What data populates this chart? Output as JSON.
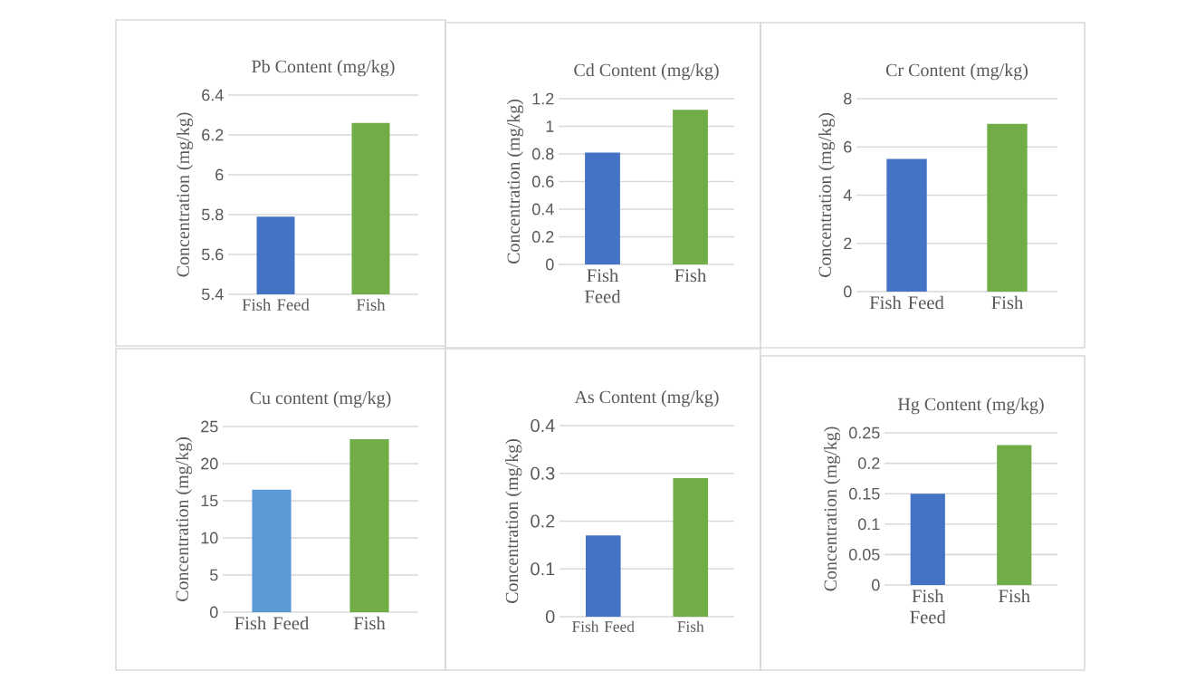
{
  "chart_data": [
    {
      "type": "bar",
      "title": "Pb Content  (mg/kg)",
      "ylabel": "Concentration (mg/kg)",
      "categories": [
        "Fish Feed",
        "Fish"
      ],
      "values": [
        5.79,
        6.26
      ],
      "colors": [
        "#4472c4",
        "#70ad47"
      ],
      "ylim": [
        5.4,
        6.4
      ],
      "yticks": [
        5.4,
        5.6,
        5.8,
        6,
        6.2,
        6.4
      ],
      "grid": "y"
    },
    {
      "type": "bar",
      "title": "Cd Content (mg/kg)",
      "ylabel": "Concentration (mg/kg)",
      "categories": [
        "Fish Feed",
        "Fish"
      ],
      "values": [
        0.81,
        1.12
      ],
      "colors": [
        "#4472c4",
        "#70ad47"
      ],
      "ylim": [
        0,
        1.2
      ],
      "yticks": [
        0,
        0.2,
        0.4,
        0.6,
        0.8,
        1,
        1.2
      ],
      "grid": "y"
    },
    {
      "type": "bar",
      "title": "Cr Content (mg/kg)",
      "ylabel": "Concentration (mg/kg)",
      "categories": [
        "Fish Feed",
        "Fish"
      ],
      "values": [
        5.5,
        6.96
      ],
      "colors": [
        "#4472c4",
        "#70ad47"
      ],
      "ylim": [
        0,
        8
      ],
      "yticks": [
        0,
        2,
        4,
        6,
        8
      ],
      "grid": "y"
    },
    {
      "type": "bar",
      "title": "Cu content (mg/kg)",
      "ylabel": "Concentration (mg/kg)",
      "categories": [
        "Fish Feed",
        "Fish"
      ],
      "values": [
        16.5,
        23.3
      ],
      "colors": [
        "#5b9bd5",
        "#70ad47"
      ],
      "ylim": [
        0,
        25
      ],
      "yticks": [
        0,
        5,
        10,
        15,
        20,
        25
      ],
      "grid": "y"
    },
    {
      "type": "bar",
      "title": "As Content (mg/kg)",
      "ylabel": "Concentration (mg/kg)",
      "categories": [
        "Fish Feed",
        "Fish"
      ],
      "values": [
        0.17,
        0.29
      ],
      "colors": [
        "#4472c4",
        "#70ad47"
      ],
      "ylim": [
        0,
        0.4
      ],
      "yticks": [
        0,
        0.1,
        0.2,
        0.3,
        0.4
      ],
      "grid": "y"
    },
    {
      "type": "bar",
      "title": "Hg Content (mg/kg)",
      "ylabel": "Concentration (mg/kg)",
      "categories": [
        "Fish Feed",
        "Fish"
      ],
      "values": [
        0.15,
        0.23
      ],
      "colors": [
        "#4472c4",
        "#70ad47"
      ],
      "ylim": [
        0,
        0.25
      ],
      "yticks": [
        0,
        0.05,
        0.1,
        0.15,
        0.2,
        0.25
      ],
      "grid": "y"
    }
  ]
}
